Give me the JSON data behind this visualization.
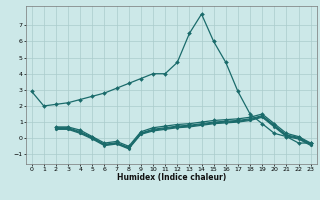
{
  "xlabel": "Humidex (Indice chaleur)",
  "bg_color": "#cce8e8",
  "grid_color": "#aacccc",
  "line_color": "#1a6b6b",
  "xlim": [
    -0.5,
    23.5
  ],
  "ylim": [
    -1.6,
    8.2
  ],
  "yticks": [
    -1,
    0,
    1,
    2,
    3,
    4,
    5,
    6,
    7
  ],
  "xticks": [
    0,
    1,
    2,
    3,
    4,
    5,
    6,
    7,
    8,
    9,
    10,
    11,
    12,
    13,
    14,
    15,
    16,
    17,
    18,
    19,
    20,
    21,
    22,
    23
  ],
  "line1_x": [
    0,
    1,
    2,
    3,
    4,
    5,
    6,
    7,
    8,
    9,
    10,
    11,
    12,
    13,
    14,
    15,
    16,
    17,
    18,
    19,
    20,
    21,
    22,
    23
  ],
  "line1_y": [
    2.9,
    2.0,
    2.1,
    2.2,
    2.4,
    2.6,
    2.8,
    3.1,
    3.4,
    3.7,
    4.0,
    4.0,
    4.7,
    6.5,
    7.7,
    6.0,
    4.7,
    2.9,
    1.5,
    0.9,
    0.3,
    0.1,
    -0.3,
    -0.3
  ],
  "line2_x": [
    0,
    1,
    2,
    3,
    4,
    5,
    6,
    7,
    8,
    9,
    10,
    11,
    12,
    13,
    14,
    15,
    16,
    17,
    18,
    19,
    20,
    21,
    22,
    23
  ],
  "line2_y": [
    null,
    null,
    0.7,
    0.7,
    0.5,
    0.1,
    -0.3,
    -0.2,
    -0.5,
    0.4,
    0.65,
    0.75,
    0.85,
    0.9,
    1.0,
    1.1,
    1.15,
    1.2,
    1.3,
    1.5,
    0.9,
    0.3,
    0.1,
    -0.3
  ],
  "line3_x": [
    0,
    1,
    2,
    3,
    4,
    5,
    6,
    7,
    8,
    9,
    10,
    11,
    12,
    13,
    14,
    15,
    16,
    17,
    18,
    19,
    20,
    21,
    22,
    23
  ],
  "line3_y": [
    null,
    null,
    0.65,
    0.65,
    0.4,
    0.05,
    -0.38,
    -0.28,
    -0.58,
    0.32,
    0.55,
    0.65,
    0.75,
    0.8,
    0.9,
    1.0,
    1.05,
    1.1,
    1.2,
    1.4,
    0.8,
    0.2,
    0.05,
    -0.35
  ],
  "line4_x": [
    0,
    1,
    2,
    3,
    4,
    5,
    6,
    7,
    8,
    9,
    10,
    11,
    12,
    13,
    14,
    15,
    16,
    17,
    18,
    19,
    20,
    21,
    22,
    23
  ],
  "line4_y": [
    null,
    null,
    0.6,
    0.6,
    0.35,
    0.0,
    -0.42,
    -0.32,
    -0.62,
    0.28,
    0.5,
    0.6,
    0.7,
    0.75,
    0.85,
    0.95,
    1.0,
    1.05,
    1.15,
    1.35,
    0.75,
    0.15,
    0.0,
    -0.4
  ],
  "line5_x": [
    0,
    1,
    2,
    3,
    4,
    5,
    6,
    7,
    8,
    9,
    10,
    11,
    12,
    13,
    14,
    15,
    16,
    17,
    18,
    19,
    20,
    21,
    22,
    23
  ],
  "line5_y": [
    null,
    null,
    0.55,
    0.55,
    0.3,
    -0.05,
    -0.46,
    -0.36,
    -0.66,
    0.24,
    0.45,
    0.55,
    0.65,
    0.7,
    0.8,
    0.9,
    0.95,
    1.0,
    1.1,
    1.3,
    0.7,
    0.1,
    -0.05,
    -0.45
  ]
}
